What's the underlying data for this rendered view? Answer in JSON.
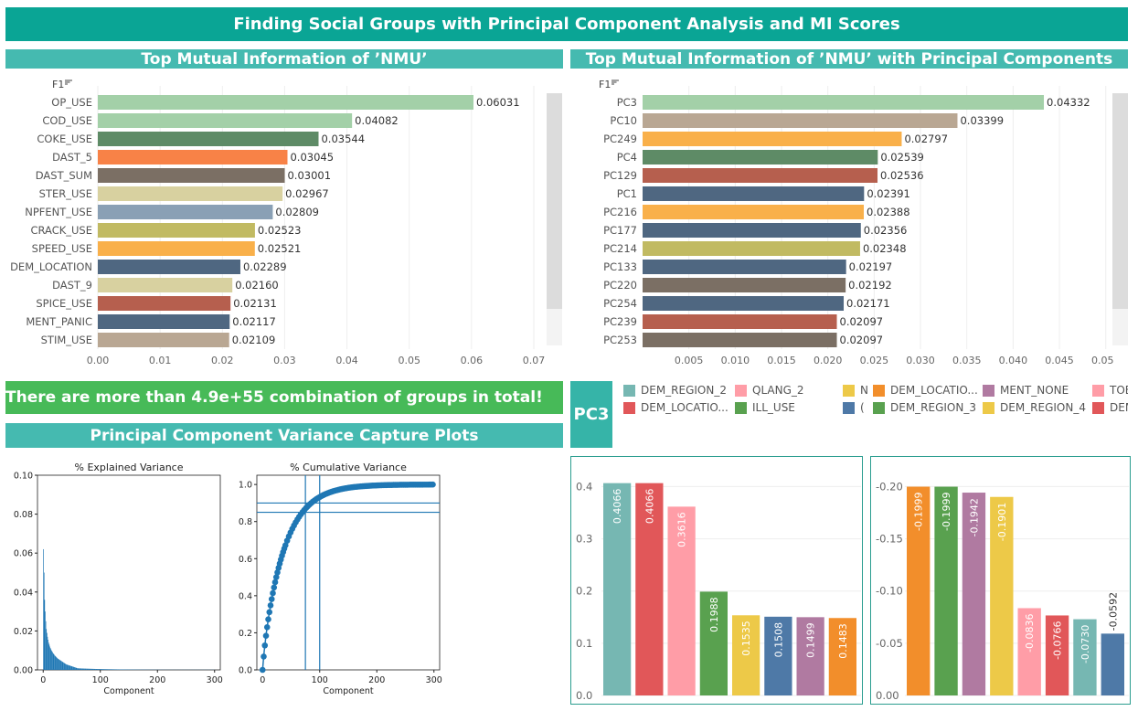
{
  "header": {
    "title": "Finding Social Groups with Principal Component Analysis and MI Scores"
  },
  "sections": {
    "top_mi": "Top Mutual Information of ’NMU’",
    "top_mi_pc": "Top Mutual Information of ’NMU’ with Principal Components",
    "variance": "Principal Component Variance Capture Plots"
  },
  "banner": {
    "text": "There are more than 4.9e+55 combination of groups in total!"
  },
  "pc_label": "PC3",
  "sort_label": "F1",
  "legend": [
    {
      "label": "DEM_REGION_2",
      "color": "#76b7b2"
    },
    {
      "label": "QLANG_2",
      "color": "#ff9da7"
    },
    {
      "label": "N",
      "color": "#edc948"
    },
    {
      "label": "DEM_LOCATIO...",
      "color": "#f28e2b"
    },
    {
      "label": "MENT_NONE",
      "color": "#b07aa1"
    },
    {
      "label": "TOE",
      "color": "#ff9da7"
    },
    {
      "label": "DEM_LOCATIO...",
      "color": "#e15759"
    },
    {
      "label": "ILL_USE",
      "color": "#59a14f"
    },
    {
      "label": "(",
      "color": "#4e79a7"
    },
    {
      "label": "DEM_REGION_3",
      "color": "#59a14f"
    },
    {
      "label": "DEM_REGION_4",
      "color": "#edc948"
    },
    {
      "label": "DEM",
      "color": "#e15759"
    }
  ],
  "chart_data": [
    {
      "type": "bar",
      "orientation": "horizontal",
      "title": "Top Mutual Information of ’NMU’",
      "categories": [
        "OP_USE",
        "COD_USE",
        "COKE_USE",
        "DAST_5",
        "DAST_SUM",
        "STER_USE",
        "NPFENT_USE",
        "CRACK_USE",
        "SPEED_USE",
        "DEM_LOCATION",
        "DAST_9",
        "SPICE_USE",
        "MENT_PANIC",
        "STIM_USE"
      ],
      "values": [
        0.06031,
        0.04082,
        0.03544,
        0.03045,
        0.03001,
        0.02967,
        0.02809,
        0.02523,
        0.02521,
        0.02289,
        0.0216,
        0.02131,
        0.02117,
        0.02109
      ],
      "labels": [
        "0.06031",
        "0.04082",
        "0.03544",
        "0.03045",
        "0.03001",
        "0.02967",
        "0.02809",
        "0.02523",
        "0.02521",
        "0.02289",
        "0.02160",
        "0.02131",
        "0.02117",
        "0.02109"
      ],
      "colors": [
        "#a3d0a8",
        "#a3d0a8",
        "#5e8b66",
        "#f88247",
        "#7b6f64",
        "#d8d1a0",
        "#8aa0b5",
        "#c1ba62",
        "#f9b04a",
        "#4f6781",
        "#d8d1a0",
        "#b65f4e",
        "#4f6781",
        "#b9a793"
      ],
      "ticks": [
        "0.00",
        "0.01",
        "0.02",
        "0.03",
        "0.04",
        "0.05",
        "0.06",
        "0.07"
      ],
      "xlim": [
        0,
        0.07
      ],
      "grid": true
    },
    {
      "type": "bar",
      "orientation": "horizontal",
      "title": "Top Mutual Information of ’NMU’ with Principal Components",
      "categories": [
        "PC3",
        "PC10",
        "PC249",
        "PC4",
        "PC129",
        "PC1",
        "PC216",
        "PC177",
        "PC214",
        "PC133",
        "PC220",
        "PC254",
        "PC239",
        "PC253"
      ],
      "values": [
        0.04332,
        0.03399,
        0.02797,
        0.02539,
        0.02536,
        0.02391,
        0.02388,
        0.02356,
        0.02348,
        0.02197,
        0.02192,
        0.02171,
        0.02097,
        0.02097
      ],
      "labels": [
        "0.04332",
        "0.03399",
        "0.02797",
        "0.02539",
        "0.02536",
        "0.02391",
        "0.02388",
        "0.02356",
        "0.02348",
        "0.02197",
        "0.02192",
        "0.02171",
        "0.02097",
        "0.02097"
      ],
      "colors": [
        "#a3d0a8",
        "#b9a793",
        "#f9b04a",
        "#5e8b66",
        "#b65f4e",
        "#4f6781",
        "#f9b04a",
        "#4f6781",
        "#c1ba62",
        "#4f6781",
        "#7b6f64",
        "#4f6781",
        "#b65f4e",
        "#7b6f64"
      ],
      "ticks": [
        "0.005",
        "0.010",
        "0.015",
        "0.020",
        "0.025",
        "0.030",
        "0.035",
        "0.040",
        "0.045",
        "0.050"
      ],
      "xlim": [
        0,
        0.052
      ],
      "grid": true
    },
    {
      "type": "bar",
      "title": "% Explained Variance",
      "xlabel": "Component",
      "ylim": [
        0,
        0.1
      ],
      "xlim": [
        -10,
        310
      ],
      "yticks": [
        "0.00",
        "0.02",
        "0.04",
        "0.06",
        "0.08",
        "0.10"
      ],
      "xticks": [
        "0",
        "100",
        "200",
        "300"
      ],
      "color": "#1f77b4",
      "values": [
        0.062,
        0.05,
        0.036,
        0.03,
        0.025,
        0.021,
        0.019,
        0.017,
        0.0155,
        0.014,
        0.013,
        0.012,
        0.0113,
        0.0106,
        0.01,
        0.0095,
        0.009,
        0.0085,
        0.0081,
        0.0077,
        0.0073,
        0.007,
        0.0067,
        0.0064,
        0.0061,
        0.0058,
        0.0056,
        0.0054,
        0.0052,
        0.005,
        0.0048,
        0.0046,
        0.0044,
        0.0042,
        0.004,
        0.0038,
        0.0036,
        0.0034,
        0.0032,
        0.003,
        0.0028,
        0.0027,
        0.0026,
        0.0025,
        0.0024,
        0.0023,
        0.0022,
        0.0021,
        0.002,
        0.0019,
        0.0018,
        0.0017,
        0.0016,
        0.0015,
        0.0014,
        0.0013,
        0.0012,
        0.0011,
        0.001,
        0.0009
      ]
    },
    {
      "type": "scatter",
      "title": "% Cumulative Variance",
      "xlabel": "Component",
      "ylim": [
        0,
        1.05
      ],
      "xlim": [
        -10,
        310
      ],
      "yticks": [
        "0.0",
        "0.2",
        "0.4",
        "0.6",
        "0.8",
        "1.0"
      ],
      "xticks": [
        "0",
        "100",
        "200",
        "300"
      ],
      "color": "#1f77b4",
      "hlines": [
        0.85,
        0.9
      ],
      "vlines": [
        75,
        100
      ],
      "curve_end": 300
    },
    {
      "type": "bar",
      "yticks": [
        "0.0",
        "0.1",
        "0.2",
        "0.3",
        "0.4"
      ],
      "ylim": [
        0,
        0.42
      ],
      "values": [
        0.4066,
        0.4066,
        0.3616,
        0.1988,
        0.1535,
        0.1508,
        0.1499,
        0.1483
      ],
      "labels": [
        "0.4066",
        "0.4066",
        "0.3616",
        "0.1988",
        "0.1535",
        "0.1508",
        "0.1499",
        "0.1483"
      ],
      "colors": [
        "#76b7b2",
        "#e15759",
        "#ff9da7",
        "#59a14f",
        "#edc948",
        "#4e79a7",
        "#b07aa1",
        "#f28e2b"
      ]
    },
    {
      "type": "bar",
      "yticks": [
        "-0.20",
        "-0.15",
        "-0.10",
        "-0.05",
        "0.00"
      ],
      "ylim": [
        0,
        -0.21
      ],
      "values": [
        -0.1999,
        -0.1999,
        -0.1942,
        -0.1901,
        -0.0836,
        -0.0766,
        -0.073,
        -0.0592
      ],
      "labels": [
        "-0.1999",
        "-0.1999",
        "-0.1942",
        "-0.1901",
        "-0.0836",
        "-0.0766",
        "-0.0730",
        "-0.0592"
      ],
      "colors": [
        "#f28e2b",
        "#59a14f",
        "#b07aa1",
        "#edc948",
        "#ff9da7",
        "#e15759",
        "#76b7b2",
        "#4e79a7"
      ]
    }
  ]
}
